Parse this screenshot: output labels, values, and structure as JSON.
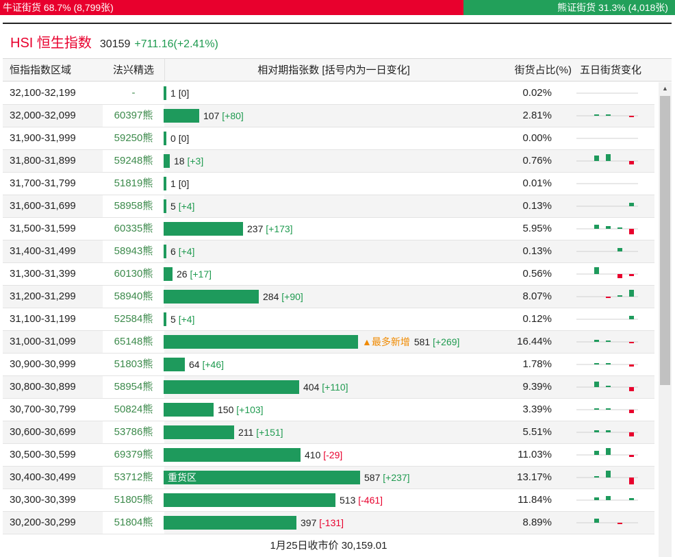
{
  "ratio": {
    "bull_text": "牛证街货 68.7% (8,799张)",
    "bear_text": "熊证街货 31.3% (4,018张)",
    "bull_fraction": 0.687
  },
  "index": {
    "name": "HSI 恒生指数",
    "price": "30159",
    "change": "+711.16(+2.41%)"
  },
  "table": {
    "headers": {
      "range": "恒指指数区域",
      "fund": "法兴精选",
      "relative": "相对期指张数 [括号内为一日变化]",
      "ratio": "街货占比(%)",
      "trend": "五日街货变化"
    },
    "footer": "1月25日收市价 30,159.01",
    "rows": [
      {
        "range": "32,100-32,199",
        "fund": "-",
        "count": "1",
        "change": "[0]",
        "ratio": "0.02%",
        "five_day": [
          0,
          0,
          0,
          0,
          0
        ]
      },
      {
        "range": "32,000-32,099",
        "fund": "60397熊",
        "count": "107",
        "change": "[+80]",
        "ratio": "2.81%",
        "five_day": [
          0.1,
          0.1,
          0,
          -0.1,
          0.6
        ]
      },
      {
        "range": "31,900-31,999",
        "fund": "59250熊",
        "count": "0",
        "change": "[0]",
        "ratio": "0.00%",
        "five_day": [
          0,
          0,
          0,
          0,
          0
        ]
      },
      {
        "range": "31,800-31,899",
        "fund": "59248熊",
        "count": "18",
        "change": "[+3]",
        "ratio": "0.76%",
        "five_day": [
          0.5,
          0.6,
          0,
          -0.3,
          0.3
        ]
      },
      {
        "range": "31,700-31,799",
        "fund": "51819熊",
        "count": "1",
        "change": "[0]",
        "ratio": "0.01%",
        "five_day": [
          0,
          0,
          0,
          0,
          0
        ]
      },
      {
        "range": "31,600-31,699",
        "fund": "58958熊",
        "count": "5",
        "change": "[+4]",
        "ratio": "0.13%",
        "five_day": [
          0,
          0,
          0,
          0.3,
          0.6
        ]
      },
      {
        "range": "31,500-31,599",
        "fund": "60335熊",
        "count": "237",
        "change": "[+173]",
        "ratio": "5.95%",
        "five_day": [
          0.35,
          0.25,
          0.1,
          -0.5,
          0.35
        ]
      },
      {
        "range": "31,400-31,499",
        "fund": "58943熊",
        "count": "6",
        "change": "[+4]",
        "ratio": "0.13%",
        "five_day": [
          0,
          0,
          0.3,
          0,
          0.6
        ]
      },
      {
        "range": "31,300-31,399",
        "fund": "60130熊",
        "count": "26",
        "change": "[+17]",
        "ratio": "0.56%",
        "five_day": [
          0.6,
          0,
          -0.4,
          -0.2,
          0.05
        ]
      },
      {
        "range": "31,200-31,299",
        "fund": "58940熊",
        "count": "284",
        "change": "[+90]",
        "ratio": "8.07%",
        "five_day": [
          0,
          -0.05,
          0.1,
          0.6,
          0.4
        ]
      },
      {
        "range": "31,100-31,199",
        "fund": "52584熊",
        "count": "5",
        "change": "[+4]",
        "ratio": "0.12%",
        "five_day": [
          0,
          0,
          0,
          0.3,
          0.6
        ]
      },
      {
        "range": "31,000-31,099",
        "fund": "65148熊",
        "count": "581",
        "change": "[+269]",
        "ratio": "16.44%",
        "five_day": [
          0.2,
          0.15,
          0,
          -0.1,
          0.6
        ],
        "highlight": "▲最多新增"
      },
      {
        "range": "30,900-30,999",
        "fund": "51803熊",
        "count": "64",
        "change": "[+46]",
        "ratio": "1.78%",
        "five_day": [
          0.1,
          0.1,
          0,
          -0.2,
          0.6
        ]
      },
      {
        "range": "30,800-30,899",
        "fund": "58954熊",
        "count": "404",
        "change": "[+110]",
        "ratio": "9.39%",
        "five_day": [
          0.5,
          0.1,
          0,
          -0.4,
          0.6
        ]
      },
      {
        "range": "30,700-30,799",
        "fund": "50824熊",
        "count": "150",
        "change": "[+103]",
        "ratio": "3.39%",
        "five_day": [
          0.1,
          0.1,
          0,
          -0.3,
          0.6
        ]
      },
      {
        "range": "30,600-30,699",
        "fund": "53786熊",
        "count": "211",
        "change": "[+151]",
        "ratio": "5.51%",
        "five_day": [
          0.2,
          0.2,
          0,
          -0.4,
          0.6
        ]
      },
      {
        "range": "30,500-30,599",
        "fund": "69379熊",
        "count": "410",
        "change": "[-29]",
        "ratio": "11.03%",
        "five_day": [
          0.35,
          0.6,
          0,
          -0.2,
          -0.2
        ]
      },
      {
        "range": "30,400-30,499",
        "fund": "53712熊",
        "count": "587",
        "change": "[+237]",
        "ratio": "13.17%",
        "five_day": [
          0.15,
          0.6,
          0,
          -0.6,
          0.6
        ],
        "bar_label": "重货区"
      },
      {
        "range": "30,300-30,399",
        "fund": "51805熊",
        "count": "513",
        "change": "[-461]",
        "ratio": "11.84%",
        "five_day": [
          0.25,
          0.35,
          0,
          0.2,
          -0.6
        ]
      },
      {
        "range": "30,200-30,299",
        "fund": "51804熊",
        "count": "397",
        "change": "[-131]",
        "ratio": "8.89%",
        "five_day": [
          0.4,
          0,
          -0.05,
          0,
          -0.6
        ]
      }
    ]
  },
  "colors": {
    "bull": "#e8002d",
    "bear": "#22a05a",
    "bar": "#1e9a5c",
    "highlight": "#f08a00"
  },
  "icons": {
    "scroll_up": "scroll-up-arrow-icon"
  }
}
